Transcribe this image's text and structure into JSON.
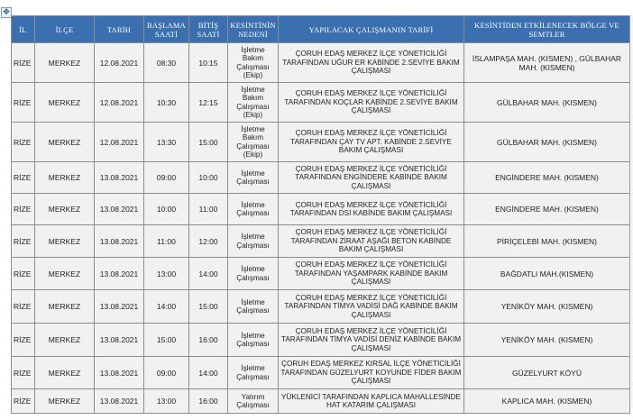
{
  "move_handle_icon": "move-cross-icon",
  "columns": [
    "İL",
    "İLÇE",
    "TARİH",
    "BAŞLAMA SAATİ",
    "BİTİŞ SAATİ",
    "KESİNTİNİN NEDENİ",
    "YAPILACAK ÇALIŞMANIN TARİFİ",
    "KESİNTİDEN ETKİLENECEK BÖLGE VE SEMTLER"
  ],
  "rows": [
    {
      "il": "RİZE",
      "ilce": "MERKEZ",
      "tarih": "12.08.2021",
      "baslama": "08:30",
      "bitis": "10:15",
      "neden": "İşletme Bakım Çalışması (Ekip)",
      "tarif": "ÇORUH EDAŞ MERKEZ İLÇE YÖNETİCİLİĞİ TARAFINDAN UĞUR ER KABİNDE 2.SEVİYE BAKIM ÇALIŞMASI",
      "bolge": "İSLAMPAŞA MAH. (KISMEN) , GÜLBAHAR MAH. (KISMEN)"
    },
    {
      "il": "RİZE",
      "ilce": "MERKEZ",
      "tarih": "12.08.2021",
      "baslama": "10:30",
      "bitis": "12:15",
      "neden": "İşletme Bakım Çalışması (Ekip)",
      "tarif": "ÇORUH EDAŞ MERKEZ İLÇE YÖNETİCİLİĞİ TARAFINDAN KOÇLAR KABİNDE 2.SEVİYE BAKIM ÇALIŞMASI",
      "bolge": "GÜLBAHAR MAH. (KISMEN)"
    },
    {
      "il": "RİZE",
      "ilce": "MERKEZ",
      "tarih": "12.08.2021",
      "baslama": "13:30",
      "bitis": "15:00",
      "neden": "İşletme Bakım Çalışması (Ekip)",
      "tarif": "ÇORUH EDAŞ MERKEZ İLÇE YÖNETİCİLİĞİ TARAFINDAN ÇAY TV APT. KABİNDE 2.SEVİYE BAKIM ÇALIŞMASI",
      "bolge": "GÜLBAHAR MAH. (KISMEN)"
    },
    {
      "il": "RİZE",
      "ilce": "MERKEZ",
      "tarih": "13.08.2021",
      "baslama": "09:00",
      "bitis": "10:00",
      "neden": "İşletme Çalışması",
      "tarif": "ÇORUH EDAŞ MERKEZ İLÇE YÖNETİCİLİĞİ TARAFINDAN ENGİNDERE KABİNDE BAKIM ÇALIŞMASI",
      "bolge": "ENGİNDERE MAH. (KISMEN)"
    },
    {
      "il": "RİZE",
      "ilce": "MERKEZ",
      "tarih": "13.08.2021",
      "baslama": "10:00",
      "bitis": "11:00",
      "neden": "İşletme Çalışması",
      "tarif": "ÇORUH EDAŞ MERKEZ İLÇE YÖNETİCİLİĞİ TARAFINDAN DSİ KABİNDE BAKIM ÇALIŞMASI",
      "bolge": "ENGİNDERE MAH. (KISMEN)"
    },
    {
      "il": "RİZE",
      "ilce": "MERKEZ",
      "tarih": "13.08.2021",
      "baslama": "11:00",
      "bitis": "12:00",
      "neden": "İşletme Çalışması",
      "tarif": "ÇORUH EDAŞ MERKEZ İLÇE YÖNETİCİLİĞİ TARAFINDAN ZİRAAT AŞAĞI BETON KABİNDE BAKIM ÇALIŞMASI",
      "bolge": "PİRİÇELEBİ MAH. (KISMEN)"
    },
    {
      "il": "RİZE",
      "ilce": "MERKEZ",
      "tarih": "13.08.2021",
      "baslama": "13:00",
      "bitis": "14:00",
      "neden": "İşletme Çalışması",
      "tarif": "ÇORUH EDAŞ MERKEZ İLÇE YÖNETİCİLİĞİ TARAFINDAN YAŞAMPARK KABİNDE BAKIM ÇALIŞMASI",
      "bolge": "BAĞDATLI MAH.(KISMEN)"
    },
    {
      "il": "RİZE",
      "ilce": "MERKEZ",
      "tarih": "13.08.2021",
      "baslama": "14:00",
      "bitis": "15:00",
      "neden": "İşletme Çalışması",
      "tarif": "ÇORUH EDAŞ MERKEZ İLÇE YÖNETİCİLİĞİ TARAFINDAN TİMYA VADİSİ DAĞ KABİNDE BAKIM ÇALIŞMASI",
      "bolge": "YENİKÖY MAH. (KISMEN)"
    },
    {
      "il": "RİZE",
      "ilce": "MERKEZ",
      "tarih": "13.08.2021",
      "baslama": "15:00",
      "bitis": "16:00",
      "neden": "İşletme Çalışması",
      "tarif": "ÇORUH EDAŞ MERKEZ İLÇE YÖNETİCİLİĞİ TARAFINDAN TİMYA VADİSİ DENİZ KABİNDE BAKIM ÇALIŞMASI",
      "bolge": "YENİKÖY MAH. (KISMEN)"
    },
    {
      "il": "RİZE",
      "ilce": "MERKEZ",
      "tarih": "13.08.2021",
      "baslama": "09:00",
      "bitis": "14:00",
      "neden": "İşletme Çalışması",
      "tarif": "ÇORUH EDAŞ MERKEZ KIRSAL İLÇE YÖNETİCİLİĞİ TARAFINDAN GÜZELYURT KOYUNDE FİDER BAKIM ÇALIŞMASI",
      "bolge": "GÜZELYURT KÖYÜ"
    },
    {
      "il": "RİZE",
      "ilce": "MERKEZ",
      "tarih": "13.08.2021",
      "baslama": "13:00",
      "bitis": "16:00",
      "neden": "Yatırım Çalışması",
      "tarif": "YÜKLENİCİ TARAFINDAN KAPLICA MAHALLESİNDE HAT KATARIM ÇALIŞMASI",
      "bolge": "KAPLICA MAH. (KISMEN)"
    }
  ],
  "colors": {
    "header_bg": "#3a6fb0",
    "header_text": "#ffffff",
    "cell_bg": "#f1f1f1",
    "border": "#8c8c8c"
  }
}
